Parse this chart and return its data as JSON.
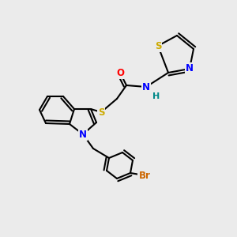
{
  "background_color": "#ebebeb",
  "bond_color": "#000000",
  "bond_width": 1.5,
  "font_size": 8.5,
  "atom_colors": {
    "C": "#000000",
    "N": "#0000ff",
    "O": "#ff0000",
    "S": "#ccaa00",
    "Br": "#cc6600",
    "H": "#008888"
  }
}
